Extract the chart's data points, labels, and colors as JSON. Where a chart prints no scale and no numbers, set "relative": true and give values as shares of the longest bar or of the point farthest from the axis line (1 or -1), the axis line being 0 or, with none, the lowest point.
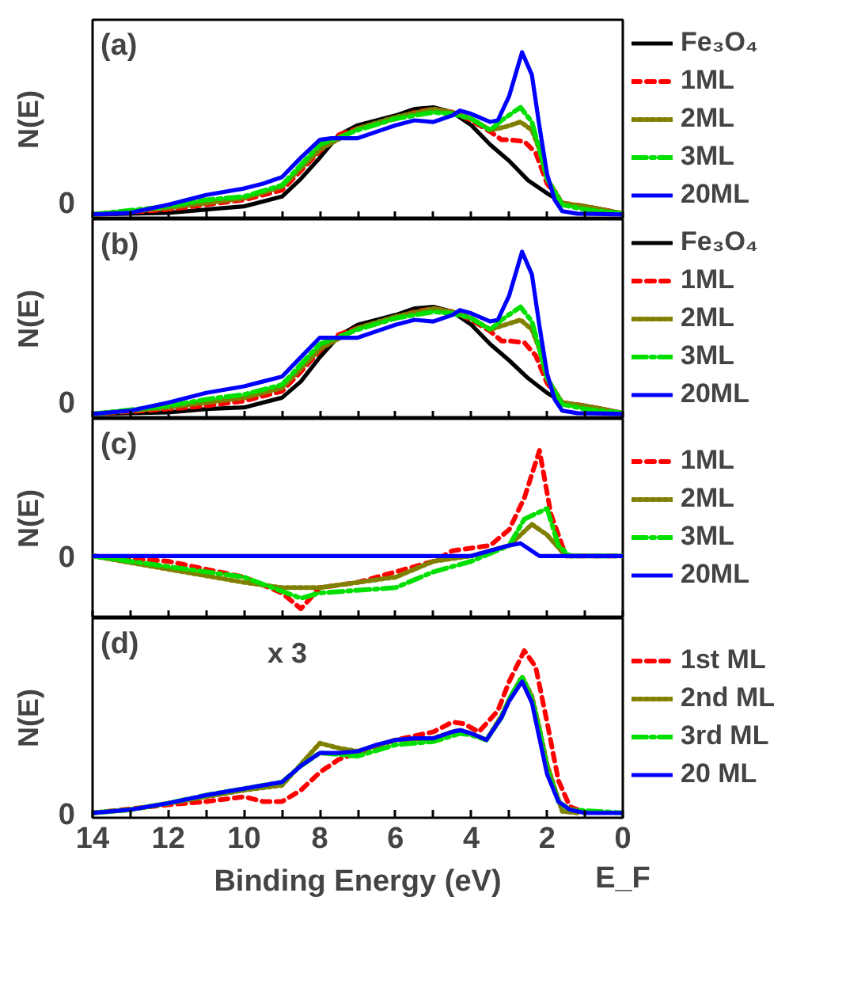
{
  "chart_data": [
    {
      "type": "line",
      "title": "(a)",
      "ylabel": "N(E)",
      "relative": true,
      "xlim": [
        14,
        0
      ],
      "annotations": [
        "0"
      ],
      "tick_labels": "y",
      "legend": "right",
      "grid": false,
      "xticks": [
        {
          "value": 14,
          "label": null
        },
        {
          "value": 13,
          "label": null
        },
        {
          "value": 12,
          "label": null
        },
        {
          "value": 11,
          "label": null
        },
        {
          "value": 10,
          "label": null
        },
        {
          "value": 9,
          "label": null
        },
        {
          "value": 8,
          "label": null
        },
        {
          "value": 7,
          "label": null
        },
        {
          "value": 6,
          "label": null
        },
        {
          "value": 5,
          "label": null
        },
        {
          "value": 4,
          "label": null
        },
        {
          "value": 3,
          "label": null
        },
        {
          "value": 2,
          "label": null
        },
        {
          "value": 1,
          "label": null
        },
        {
          "value": 0,
          "label": null
        }
      ],
      "series": [
        {
          "name": "Fe₃O₄",
          "color": "#000000",
          "line_style": "solid",
          "x": [
            14,
            12,
            11,
            10,
            9,
            8.5,
            8,
            7.5,
            7,
            6,
            5.5,
            5,
            4.5,
            4,
            3.5,
            3,
            2.5,
            2,
            1.5,
            1,
            0.5,
            0
          ],
          "values": [
            0,
            0.01,
            0.03,
            0.05,
            0.11,
            0.22,
            0.35,
            0.49,
            0.55,
            0.61,
            0.65,
            0.66,
            0.63,
            0.55,
            0.43,
            0.33,
            0.21,
            0.13,
            0.06,
            0.05,
            0.03,
            0.005
          ]
        },
        {
          "name": "1ML",
          "color": "#ff0000",
          "line_style": "dashed",
          "x": [
            14,
            12,
            11,
            10,
            9,
            8.5,
            8,
            7.5,
            7,
            6,
            5.5,
            5,
            4.5,
            4,
            3.5,
            3.2,
            3,
            2.6,
            2.3,
            2,
            1.6,
            1,
            0
          ],
          "values": [
            0,
            0.03,
            0.06,
            0.09,
            0.15,
            0.27,
            0.39,
            0.49,
            0.53,
            0.59,
            0.63,
            0.65,
            0.63,
            0.58,
            0.51,
            0.46,
            0.46,
            0.45,
            0.38,
            0.19,
            0.07,
            0.05,
            0.005
          ]
        },
        {
          "name": "2ML",
          "color": "#808000",
          "line_style": "dotted",
          "x": [
            14,
            12,
            10,
            9,
            8,
            7,
            6,
            5,
            4.5,
            4,
            3.5,
            3.1,
            2.7,
            2.4,
            2.2,
            2,
            1.6,
            1,
            0
          ],
          "values": [
            0,
            0.04,
            0.1,
            0.17,
            0.4,
            0.53,
            0.6,
            0.65,
            0.63,
            0.59,
            0.52,
            0.54,
            0.57,
            0.52,
            0.4,
            0.22,
            0.07,
            0.05,
            0.005
          ]
        },
        {
          "name": "3ML",
          "color": "#00e000",
          "line_style": "dashdot",
          "x": [
            14,
            12,
            11,
            10,
            9,
            8,
            7,
            6,
            5,
            4.5,
            4,
            3.5,
            3.2,
            2.7,
            2.4,
            2.2,
            2,
            1.6,
            1,
            0
          ],
          "values": [
            0,
            0.05,
            0.09,
            0.11,
            0.18,
            0.43,
            0.52,
            0.59,
            0.63,
            0.62,
            0.59,
            0.52,
            0.58,
            0.66,
            0.57,
            0.4,
            0.22,
            0.06,
            0.03,
            0.005
          ]
        },
        {
          "name": "20ML",
          "color": "#0000ff",
          "line_style": "solid",
          "x": [
            14,
            13,
            12,
            11,
            10,
            9.5,
            9,
            8.5,
            8,
            7.7,
            7,
            6.5,
            6,
            5.5,
            5,
            4.5,
            4.3,
            4,
            3.5,
            3.3,
            3,
            2.66,
            2.4,
            2.2,
            2,
            1.8,
            1.6,
            1.2,
            0
          ],
          "values": [
            0,
            0.01,
            0.06,
            0.12,
            0.16,
            0.19,
            0.23,
            0.35,
            0.46,
            0.47,
            0.47,
            0.51,
            0.55,
            0.58,
            0.57,
            0.61,
            0.64,
            0.62,
            0.57,
            0.58,
            0.73,
            1,
            0.86,
            0.54,
            0.25,
            0.09,
            0.02,
            0.005,
            0
          ]
        }
      ]
    },
    {
      "type": "line",
      "title": "(b)",
      "ylabel": "N(E)",
      "relative": true,
      "xlim": [
        14,
        0
      ],
      "annotations": [
        "0"
      ],
      "tick_labels": "y",
      "legend": "right",
      "grid": false,
      "xticks": [
        {
          "value": 14,
          "label": null
        },
        {
          "value": 13,
          "label": null
        },
        {
          "value": 12,
          "label": null
        },
        {
          "value": 11,
          "label": null
        },
        {
          "value": 10,
          "label": null
        },
        {
          "value": 9,
          "label": null
        },
        {
          "value": 8,
          "label": null
        },
        {
          "value": 7,
          "label": null
        },
        {
          "value": 6,
          "label": null
        },
        {
          "value": 5,
          "label": null
        },
        {
          "value": 4,
          "label": null
        },
        {
          "value": 3,
          "label": null
        },
        {
          "value": 2,
          "label": null
        },
        {
          "value": 1,
          "label": null
        },
        {
          "value": 0,
          "label": null
        }
      ],
      "series": [
        {
          "name": "Fe₃O₄",
          "color": "#000000",
          "line_style": "solid",
          "x": [
            14,
            12,
            11,
            10,
            9,
            8.5,
            8,
            7.5,
            7,
            6,
            5.5,
            5,
            4.5,
            4,
            3.5,
            3,
            2.5,
            2,
            1.5,
            1,
            0.5,
            0
          ],
          "values": [
            0,
            0.01,
            0.03,
            0.04,
            0.1,
            0.2,
            0.35,
            0.48,
            0.55,
            0.61,
            0.65,
            0.66,
            0.63,
            0.55,
            0.43,
            0.33,
            0.22,
            0.13,
            0.06,
            0.05,
            0.03,
            0.005
          ]
        },
        {
          "name": "1ML",
          "color": "#ff0000",
          "line_style": "dashed",
          "x": [
            14,
            12,
            11,
            10,
            9,
            8.5,
            8,
            7.5,
            7,
            6,
            5.5,
            5,
            4.5,
            4,
            3.5,
            3.2,
            3,
            2.6,
            2.3,
            2,
            1.6,
            1,
            0
          ],
          "values": [
            0,
            0.03,
            0.05,
            0.08,
            0.14,
            0.26,
            0.39,
            0.49,
            0.53,
            0.59,
            0.63,
            0.65,
            0.63,
            0.58,
            0.51,
            0.45,
            0.45,
            0.44,
            0.36,
            0.19,
            0.07,
            0.05,
            0.005
          ]
        },
        {
          "name": "2ML",
          "color": "#808000",
          "line_style": "dotted",
          "x": [
            14,
            12,
            10,
            9,
            8,
            7,
            6,
            5,
            4.5,
            4,
            3.5,
            3.1,
            2.7,
            2.4,
            2.2,
            2,
            1.6,
            1,
            0
          ],
          "values": [
            0,
            0.04,
            0.1,
            0.16,
            0.4,
            0.53,
            0.6,
            0.65,
            0.63,
            0.59,
            0.52,
            0.55,
            0.58,
            0.52,
            0.4,
            0.22,
            0.07,
            0.05,
            0.005
          ]
        },
        {
          "name": "3ML",
          "color": "#00e000",
          "line_style": "dashdot",
          "x": [
            14,
            12,
            11,
            10,
            9,
            8,
            7,
            6,
            5,
            4.5,
            4,
            3.5,
            3.2,
            2.7,
            2.4,
            2.2,
            2,
            1.6,
            1,
            0
          ],
          "values": [
            0,
            0.05,
            0.09,
            0.12,
            0.18,
            0.43,
            0.52,
            0.59,
            0.63,
            0.62,
            0.59,
            0.52,
            0.58,
            0.66,
            0.57,
            0.4,
            0.22,
            0.06,
            0.03,
            0.005
          ]
        },
        {
          "name": "20ML",
          "color": "#0000ff",
          "line_style": "solid",
          "x": [
            14,
            13,
            12,
            11,
            10,
            9.5,
            9,
            8.5,
            8,
            7.7,
            7,
            6.5,
            6,
            5.5,
            5,
            4.5,
            4.3,
            4,
            3.5,
            3.3,
            3,
            2.66,
            2.4,
            2.2,
            2,
            1.8,
            1.6,
            1.2,
            0
          ],
          "values": [
            0,
            0.02,
            0.07,
            0.13,
            0.17,
            0.2,
            0.23,
            0.35,
            0.47,
            0.47,
            0.47,
            0.51,
            0.55,
            0.58,
            0.57,
            0.61,
            0.64,
            0.62,
            0.57,
            0.58,
            0.73,
            1,
            0.86,
            0.54,
            0.25,
            0.09,
            0.02,
            0.005,
            0
          ]
        }
      ]
    },
    {
      "type": "line",
      "title": "(c)",
      "ylabel": "N(E)",
      "relative": true,
      "xlim": [
        14,
        0
      ],
      "annotations": [
        "0"
      ],
      "tick_labels": "y",
      "legend": "right",
      "grid": false,
      "xticks": [
        {
          "value": 14,
          "label": null
        },
        {
          "value": 13,
          "label": null
        },
        {
          "value": 12,
          "label": null
        },
        {
          "value": 11,
          "label": null
        },
        {
          "value": 10,
          "label": null
        },
        {
          "value": 9,
          "label": null
        },
        {
          "value": 8,
          "label": null
        },
        {
          "value": 7,
          "label": null
        },
        {
          "value": 6,
          "label": null
        },
        {
          "value": 5,
          "label": null
        },
        {
          "value": 4,
          "label": null
        },
        {
          "value": 3,
          "label": null
        },
        {
          "value": 2,
          "label": null
        },
        {
          "value": 1,
          "label": null
        },
        {
          "value": 0,
          "label": null
        }
      ],
      "series": [
        {
          "name": "1ML",
          "color": "#ff0000",
          "line_style": "dashed",
          "x": [
            14,
            12,
            10,
            9,
            8.5,
            8,
            7,
            6,
            5,
            4.5,
            3.5,
            3,
            2.6,
            2.2,
            1.9,
            1.5,
            0
          ],
          "values": [
            0,
            -0.05,
            -0.2,
            -0.35,
            -0.5,
            -0.3,
            -0.25,
            -0.15,
            -0.05,
            0.05,
            0.1,
            0.25,
            0.55,
            1,
            0.4,
            0,
            0
          ]
        },
        {
          "name": "2ML",
          "color": "#808000",
          "line_style": "dotted",
          "x": [
            14,
            10,
            9,
            8,
            6,
            5,
            4,
            3,
            2.4,
            2,
            1.5,
            0
          ],
          "values": [
            0,
            -0.25,
            -0.3,
            -0.3,
            -0.2,
            -0.05,
            0,
            0.1,
            0.3,
            0.2,
            0,
            0
          ]
        },
        {
          "name": "3ML",
          "color": "#00e000",
          "line_style": "dashdot",
          "x": [
            14,
            10,
            8.5,
            8,
            6,
            5,
            4,
            3,
            2.6,
            2,
            1.7,
            1.4,
            0
          ],
          "values": [
            0,
            -0.2,
            -0.4,
            -0.35,
            -0.3,
            -0.15,
            -0.05,
            0.1,
            0.35,
            0.45,
            0.1,
            0,
            0
          ]
        },
        {
          "name": "20ML",
          "color": "#0000ff",
          "line_style": "solid",
          "x": [
            14,
            4,
            3,
            2.7,
            2.2,
            0
          ],
          "values": [
            0,
            0,
            0.1,
            0.12,
            0,
            0
          ]
        }
      ]
    },
    {
      "type": "line",
      "title": "(d)",
      "ylabel": "N(E)",
      "xlabel": "Binding Energy (eV)",
      "relative": true,
      "xlim": [
        14,
        0
      ],
      "legend": "right",
      "grid": false,
      "annotations": [
        "x 3",
        "E_F",
        "0"
      ],
      "xticks": [
        14,
        {
          "value": 13,
          "label": null
        },
        12,
        {
          "value": 11,
          "label": null
        },
        10,
        {
          "value": 9,
          "label": null
        },
        8,
        {
          "value": 7,
          "label": null
        },
        6,
        {
          "value": 5,
          "label": null
        },
        4,
        {
          "value": 3,
          "label": null
        },
        2,
        {
          "value": 1,
          "label": null
        },
        0
      ],
      "series": [
        {
          "name": "1st ML",
          "color": "#ff0000",
          "line_style": "dashed",
          "x": [
            14,
            12,
            11,
            10,
            9.5,
            9,
            8.5,
            8,
            7.5,
            7,
            6,
            5,
            4.5,
            4.2,
            3.8,
            3.3,
            3,
            2.6,
            2.3,
            2,
            1.7,
            1.4,
            1
          ],
          "values": [
            0,
            0.05,
            0.07,
            0.1,
            0.07,
            0.07,
            0.14,
            0.25,
            0.33,
            0.37,
            0.45,
            0.5,
            0.56,
            0.55,
            0.5,
            0.63,
            0.81,
            1,
            0.9,
            0.56,
            0.2,
            0.04,
            0
          ]
        },
        {
          "name": "2nd ML",
          "color": "#808000",
          "line_style": "dotted",
          "x": [
            14,
            13,
            12,
            11,
            10,
            9,
            8.5,
            8,
            7.5,
            7,
            6,
            5,
            4.5,
            4.3,
            4,
            3.6,
            3.2,
            3,
            2.66,
            2.4,
            2.2,
            2,
            1.6,
            1.2
          ],
          "values": [
            0,
            0.02,
            0.06,
            0.1,
            0.14,
            0.17,
            0.3,
            0.43,
            0.4,
            0.38,
            0.45,
            0.46,
            0.5,
            0.51,
            0.49,
            0.45,
            0.6,
            0.7,
            0.84,
            0.72,
            0.52,
            0.3,
            0.01,
            0
          ]
        },
        {
          "name": "3rd ML",
          "color": "#00e000",
          "line_style": "dashdot",
          "x": [
            14,
            13,
            12,
            11,
            10,
            9,
            8.5,
            8,
            7.5,
            7,
            6,
            5,
            4.3,
            4,
            3.6,
            3.2,
            3,
            2.66,
            2.4,
            2.2,
            2,
            1.7,
            1.4,
            0
          ],
          "values": [
            0,
            0.02,
            0.06,
            0.11,
            0.15,
            0.19,
            0.29,
            0.37,
            0.36,
            0.35,
            0.42,
            0.44,
            0.49,
            0.48,
            0.45,
            0.59,
            0.7,
            0.84,
            0.7,
            0.51,
            0.27,
            0.07,
            0.02,
            0
          ]
        },
        {
          "name": "20 ML",
          "color": "#0000ff",
          "line_style": "solid",
          "x": [
            14,
            13,
            12,
            11,
            10,
            9,
            8.5,
            8,
            7.5,
            7,
            6.5,
            6,
            5.5,
            5,
            4.5,
            4.3,
            4,
            3.6,
            3.2,
            3,
            2.66,
            2.4,
            2.2,
            2,
            1.7,
            1.4,
            1,
            0
          ],
          "values": [
            0,
            0.02,
            0.06,
            0.11,
            0.15,
            0.19,
            0.29,
            0.37,
            0.37,
            0.38,
            0.42,
            0.45,
            0.46,
            0.46,
            0.5,
            0.51,
            0.49,
            0.45,
            0.59,
            0.69,
            0.81,
            0.68,
            0.46,
            0.24,
            0.07,
            0.02,
            0,
            0
          ]
        }
      ]
    }
  ]
}
